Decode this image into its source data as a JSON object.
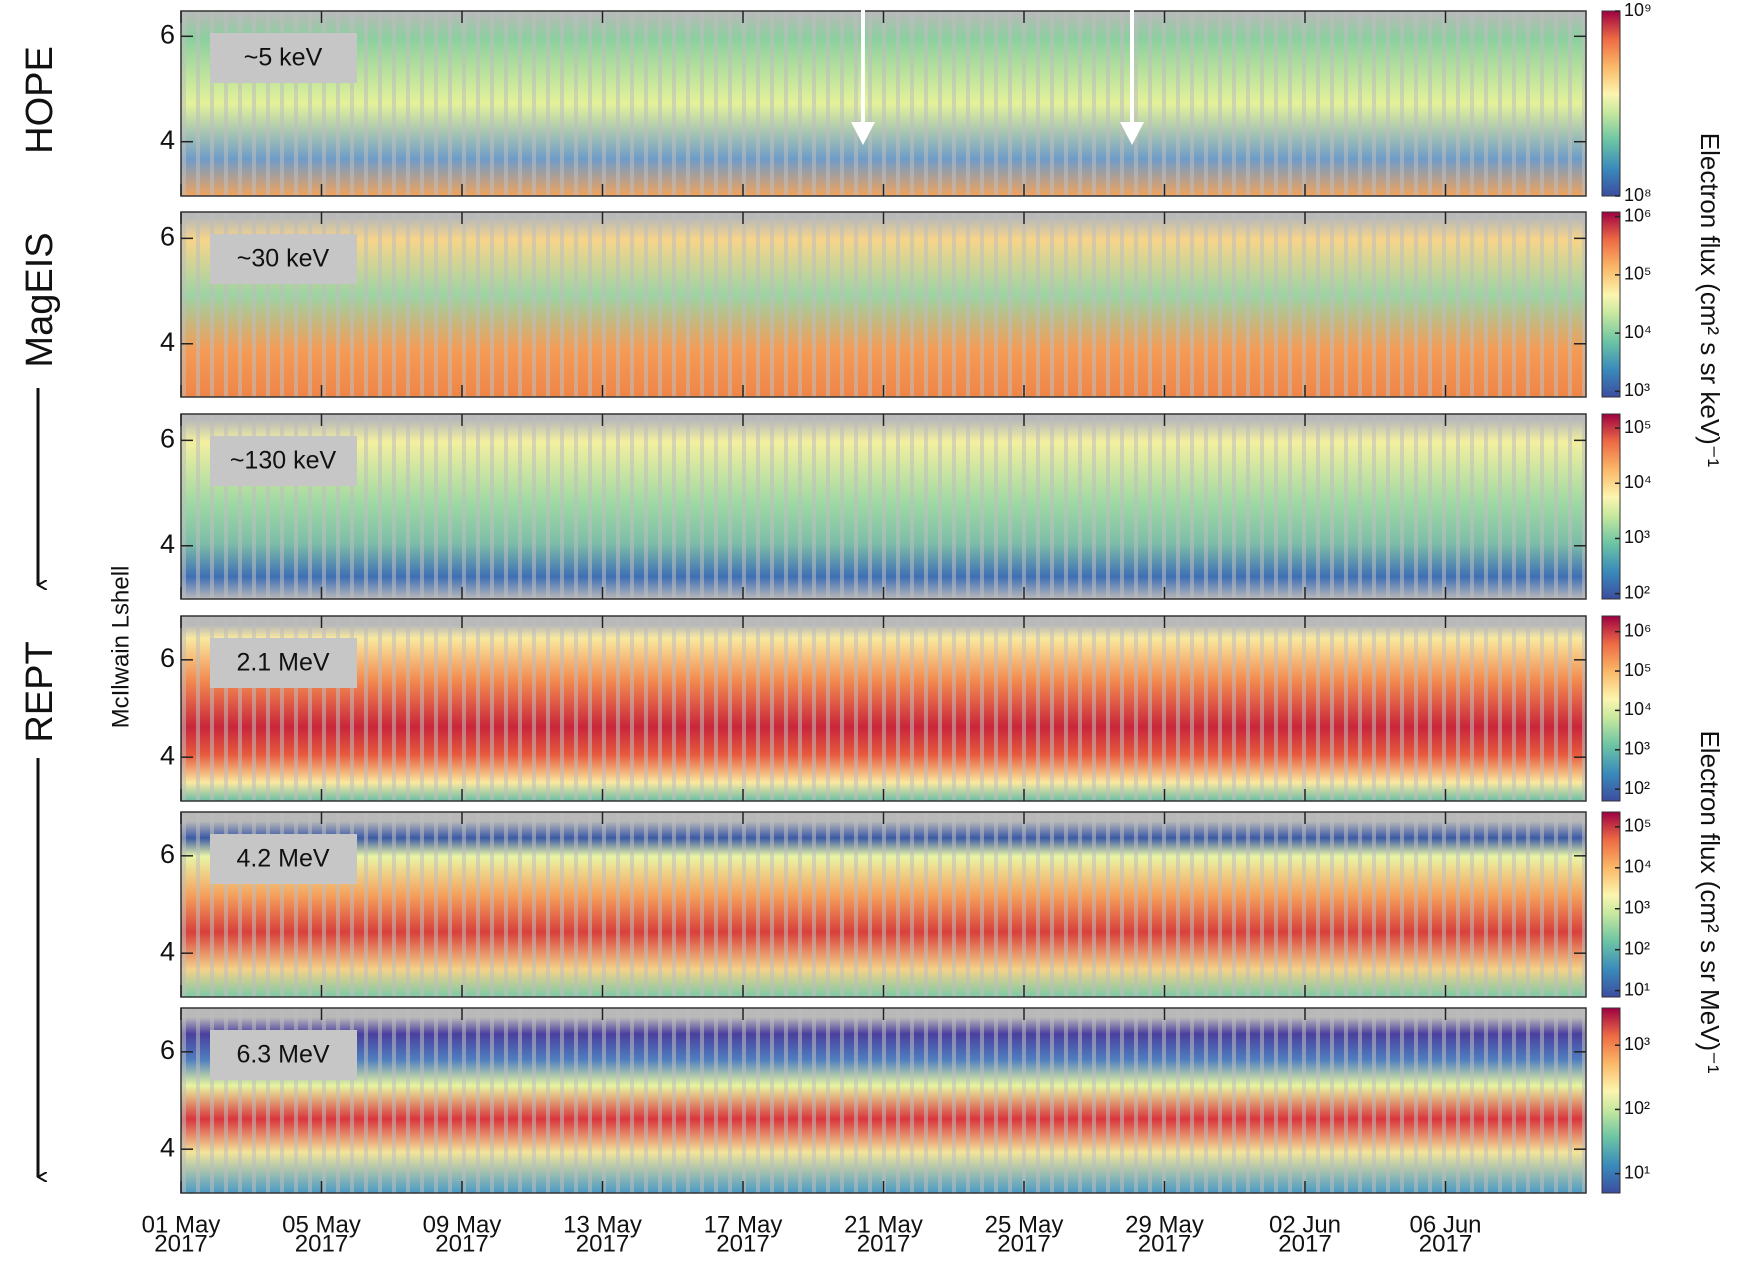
{
  "instruments": [
    "HOPE",
    "MagEIS",
    "REPT"
  ],
  "y_axis_label": "McIlwain Lshell",
  "colorbar_labels": [
    "Electron flux (cm² s sr keV)⁻¹",
    "Electron flux (cm² s sr MeV)⁻¹"
  ],
  "shared_x": {
    "xlim": [
      "2017-05-01",
      "2017-06-10"
    ],
    "xticks": [
      {
        "value": "2017-05-01",
        "label": [
          "01 May",
          "2017"
        ]
      },
      {
        "value": "2017-05-05",
        "label": [
          "05 May",
          "2017"
        ]
      },
      {
        "value": "2017-05-09",
        "label": [
          "09 May",
          "2017"
        ]
      },
      {
        "value": "2017-05-13",
        "label": [
          "13 May",
          "2017"
        ]
      },
      {
        "value": "2017-05-17",
        "label": [
          "17 May",
          "2017"
        ]
      },
      {
        "value": "2017-05-21",
        "label": [
          "21 May",
          "2017"
        ]
      },
      {
        "value": "2017-05-25",
        "label": [
          "25 May",
          "2017"
        ]
      },
      {
        "value": "2017-05-29",
        "label": [
          "29 May",
          "2017"
        ]
      },
      {
        "value": "2017-06-02",
        "label": [
          "02 Jun",
          "2017"
        ]
      },
      {
        "value": "2017-06-06",
        "label": [
          "06 Jun",
          "2017"
        ]
      }
    ]
  },
  "chart_data": [
    {
      "type": "heatmap",
      "annotation": "~5 keV",
      "ylim": [
        2.97,
        6.48
      ],
      "yticks": [
        4,
        6
      ],
      "colorbar": {
        "scale": "log",
        "lim": [
          100000000,
          1000000000
        ],
        "ticks": [
          {
            "value": 100000000,
            "label": "10⁸"
          },
          {
            "value": 1000000000,
            "label": "10⁹"
          }
        ]
      }
    },
    {
      "type": "heatmap",
      "annotation": "~30 keV",
      "ylim": [
        2.99,
        6.5
      ],
      "yticks": [
        4,
        6
      ],
      "colorbar": {
        "scale": "log",
        "lim": [
          800,
          1200000
        ],
        "ticks": [
          {
            "value": 1000,
            "label": "10³"
          },
          {
            "value": 10000,
            "label": "10⁴"
          },
          {
            "value": 100000,
            "label": "10⁵"
          },
          {
            "value": 1000000,
            "label": "10⁶"
          }
        ]
      }
    },
    {
      "type": "heatmap",
      "annotation": "~130 keV",
      "ylim": [
        2.99,
        6.5
      ],
      "yticks": [
        4,
        6
      ],
      "colorbar": {
        "scale": "log",
        "lim": [
          80,
          180000
        ],
        "ticks": [
          {
            "value": 100,
            "label": "10²"
          },
          {
            "value": 1000,
            "label": "10³"
          },
          {
            "value": 10000,
            "label": "10⁴"
          },
          {
            "value": 100000,
            "label": "10⁵"
          }
        ]
      }
    },
    {
      "type": "heatmap",
      "annotation": "2.1 MeV",
      "ylim": [
        3.1,
        6.9
      ],
      "yticks": [
        4,
        6
      ],
      "colorbar": {
        "scale": "log",
        "lim": [
          50,
          2500000
        ],
        "ticks": [
          {
            "value": 100,
            "label": "10²"
          },
          {
            "value": 1000,
            "label": "10³"
          },
          {
            "value": 10000,
            "label": "10⁴"
          },
          {
            "value": 100000,
            "label": "10⁵"
          },
          {
            "value": 1000000,
            "label": "10⁶"
          }
        ]
      }
    },
    {
      "type": "heatmap",
      "annotation": "4.2 MeV",
      "ylim": [
        3.1,
        6.9
      ],
      "yticks": [
        4,
        6
      ],
      "colorbar": {
        "scale": "log",
        "lim": [
          7,
          230000
        ],
        "ticks": [
          {
            "value": 10,
            "label": "10¹"
          },
          {
            "value": 100,
            "label": "10²"
          },
          {
            "value": 1000,
            "label": "10³"
          },
          {
            "value": 10000,
            "label": "10⁴"
          },
          {
            "value": 100000,
            "label": "10⁵"
          }
        ]
      }
    },
    {
      "type": "heatmap",
      "annotation": "6.3 MeV",
      "ylim": [
        3.1,
        6.9
      ],
      "yticks": [
        4,
        6
      ],
      "colorbar": {
        "scale": "log",
        "lim": [
          5,
          3800
        ],
        "ticks": [
          {
            "value": 10,
            "label": "10¹"
          },
          {
            "value": 100,
            "label": "10²"
          },
          {
            "value": 1000,
            "label": "10³"
          }
        ]
      }
    }
  ]
}
